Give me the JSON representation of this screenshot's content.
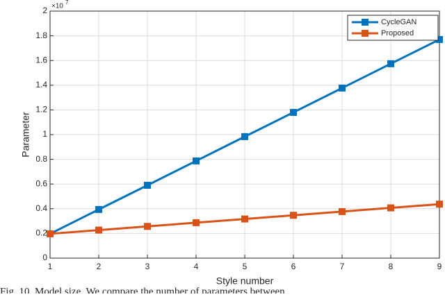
{
  "chart_data": {
    "type": "line",
    "x_label": "Style number",
    "y_label": "Parameter",
    "y_multiplier": {
      "base": "×10",
      "exponent": "7"
    },
    "x": [
      1,
      2,
      3,
      4,
      5,
      6,
      7,
      8,
      9
    ],
    "series": [
      {
        "name": "CycleGAN",
        "color": "#0072bd",
        "values": [
          0.197,
          0.394,
          0.59,
          0.787,
          0.984,
          1.18,
          1.377,
          1.574,
          1.77
        ]
      },
      {
        "name": "Proposed",
        "color": "#d95319",
        "values": [
          0.197,
          0.227,
          0.257,
          0.287,
          0.317,
          0.347,
          0.377,
          0.407,
          0.437
        ]
      }
    ],
    "xlim": [
      1,
      9
    ],
    "xticks": [
      1,
      2,
      3,
      4,
      5,
      6,
      7,
      8,
      9
    ],
    "ylim": [
      0,
      2
    ],
    "yticks": [
      0,
      0.2,
      0.4,
      0.6,
      0.8,
      1,
      1.2,
      1.4,
      1.6,
      1.8,
      2
    ],
    "grid": true,
    "legend": "top-right",
    "caption": "Fig. 10.    Model size.  We compare the number of parameters between"
  }
}
